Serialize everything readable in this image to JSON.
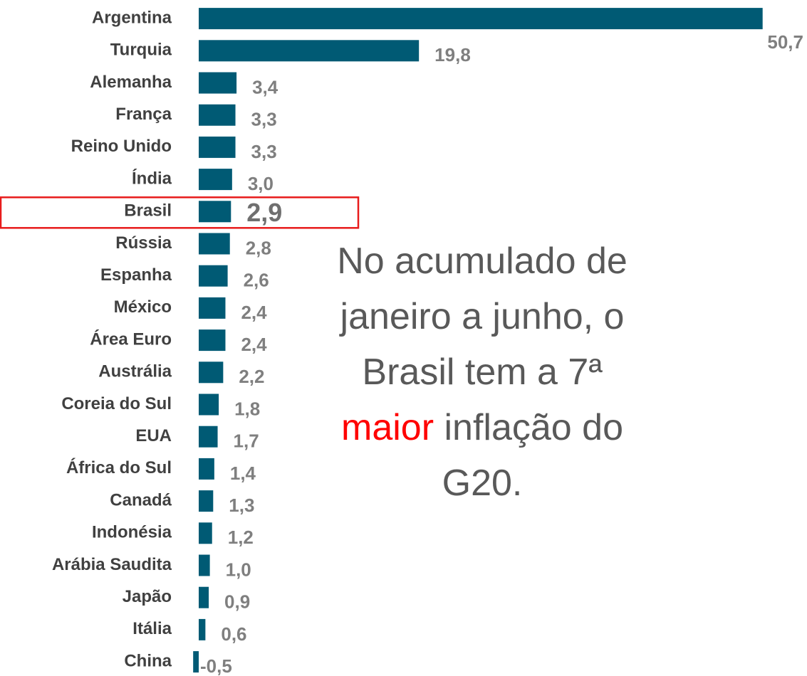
{
  "chart_data": {
    "type": "barh",
    "categories": [
      "Argentina",
      "Turquia",
      "Alemanha",
      "França",
      "Reino Unido",
      "Índia",
      "Brasil",
      "Rússia",
      "Espanha",
      "México",
      "Área Euro",
      "Austrália",
      "Coreia do Sul",
      "EUA",
      "África do Sul",
      "Canadá",
      "Indonésia",
      "Arábia Saudita",
      "Japão",
      "Itália",
      "China"
    ],
    "values": [
      50.7,
      19.8,
      3.4,
      3.3,
      3.3,
      3.0,
      2.9,
      2.8,
      2.6,
      2.4,
      2.4,
      2.2,
      1.8,
      1.7,
      1.4,
      1.3,
      1.2,
      1.0,
      0.9,
      0.6,
      -0.5
    ],
    "value_labels": [
      "50,7",
      "19,8",
      "3,4",
      "3,3",
      "3,3",
      "3,0",
      "2,9",
      "2,8",
      "2,6",
      "2,4",
      "2,4",
      "2,2",
      "1,8",
      "1,7",
      "1,4",
      "1,3",
      "1,2",
      "1,0",
      "0,9",
      "0,6",
      "-0,5"
    ],
    "color": "#005a74",
    "xlim": [
      0,
      52
    ],
    "highlight_index": 6,
    "highlight_color": "#e81c1c",
    "annotation": [
      [
        {
          "text": "No acumulado de",
          "color": "#595959"
        }
      ],
      [
        {
          "text": "janeiro a junho, o",
          "color": "#595959"
        }
      ],
      [
        {
          "text": "Brasil tem a 7ª",
          "color": "#595959"
        }
      ],
      [
        {
          "text": "maior",
          "color": "#ff0000"
        },
        {
          "text": " inflação do",
          "color": "#595959"
        }
      ],
      [
        {
          "text": "G20.",
          "color": "#595959"
        }
      ]
    ]
  }
}
